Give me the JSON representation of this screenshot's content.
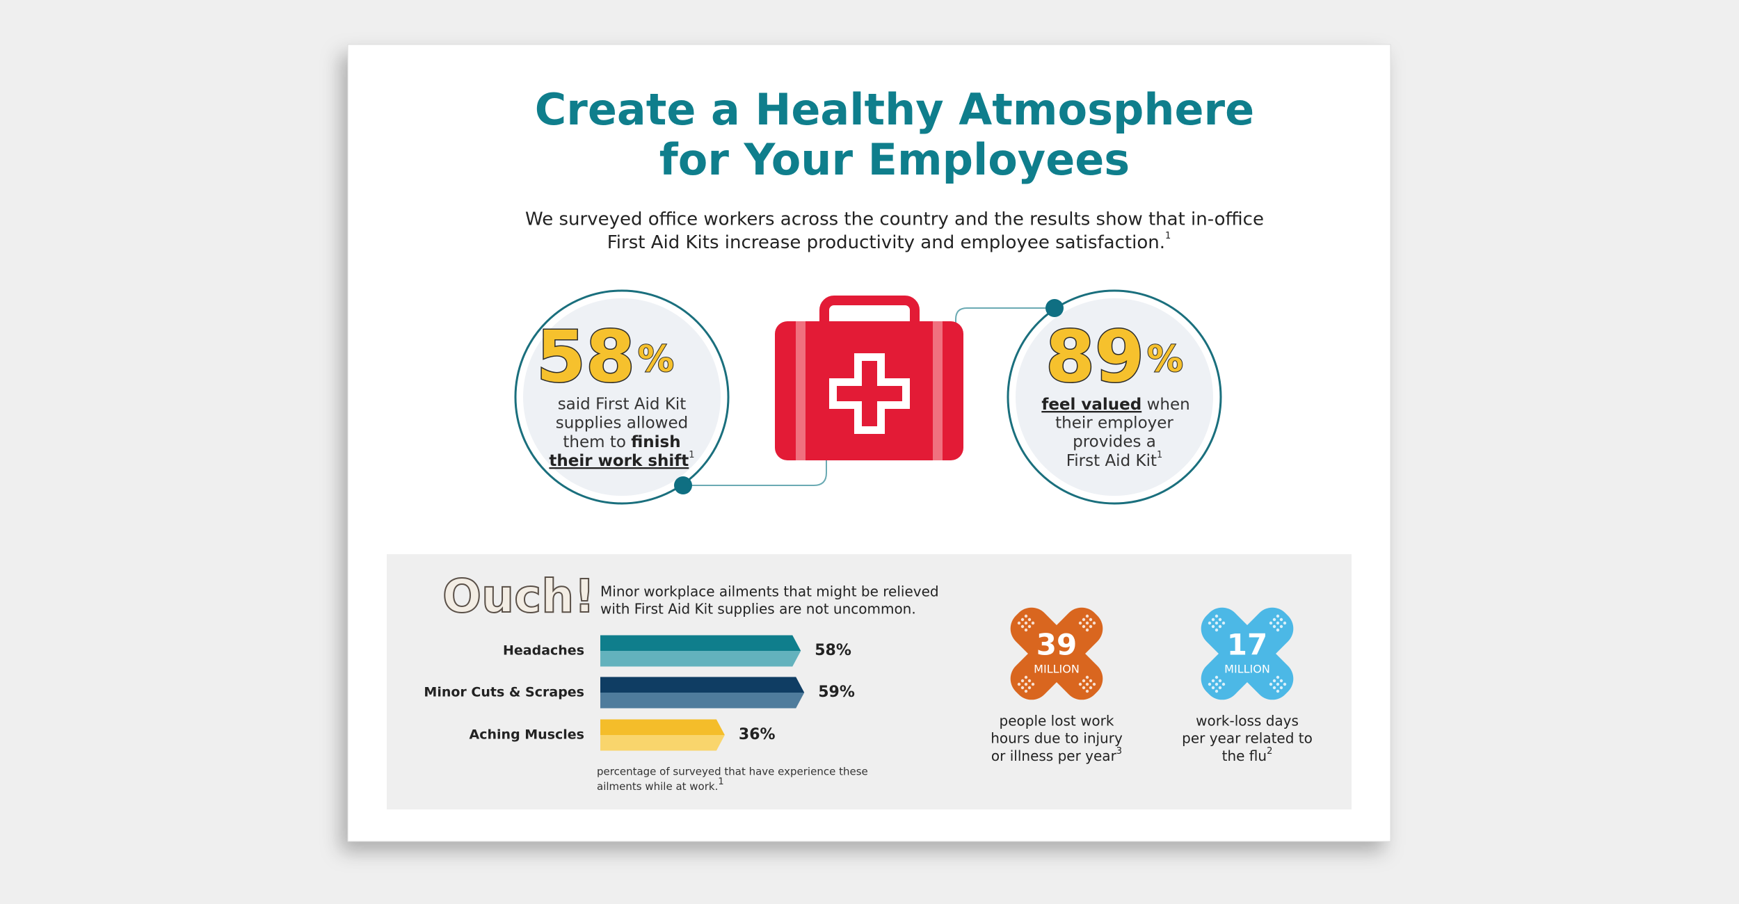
{
  "header": {
    "title_line1": "Create a Healthy Atmosphere",
    "title_line2": "for Your Employees",
    "subtitle_line1": "We surveyed office workers across the country and the results show that in-office",
    "subtitle_line2": "First Aid Kits increase productivity and employee satisfaction.",
    "subtitle_footnote": "1"
  },
  "stats": [
    {
      "value": "58",
      "unit": "%",
      "line1": "said First Aid Kit",
      "line2": "supplies allowed",
      "line3": "them to",
      "emphasis1": "finish",
      "emphasis2": "their work shift",
      "footnote": "1"
    },
    {
      "value": "89",
      "unit": "%",
      "emphasis": "feel valued",
      "line1": "when",
      "line2": "their employer",
      "line3": "provides a",
      "line4": "First Aid Kit",
      "footnote": "1"
    }
  ],
  "ailments": {
    "heading": "Ouch!",
    "description_line1": "Minor workplace ailments that might be relieved",
    "description_line2": "with First Aid Kit supplies are not uncommon.",
    "categories": [
      "Headaches",
      "Minor Cuts & Scrapes",
      "Aching Muscles"
    ],
    "values": [
      58,
      59,
      36
    ],
    "value_labels": [
      "58%",
      "59%",
      "36%"
    ],
    "colors": [
      [
        "#0f7e8c",
        "#63b2bd"
      ],
      [
        "#0f3d63",
        "#4f7c9c"
      ],
      [
        "#f4bd2a",
        "#f9d56c"
      ]
    ],
    "note_line1": "percentage of surveyed that have experience these",
    "note_line2": "ailments while at work.",
    "note_footnote": "1"
  },
  "facts": [
    {
      "number": "39",
      "unit": "MILLION",
      "line1": "people lost work",
      "line2": "hours due to injury",
      "line3": "or illness per year",
      "footnote": "3",
      "color": "#d9661f"
    },
    {
      "number": "17",
      "unit": "MILLION",
      "line1": "work-loss days",
      "line2": "per year related to",
      "line3": "the flu",
      "footnote": "2",
      "color": "#4cb8e6"
    }
  ]
}
